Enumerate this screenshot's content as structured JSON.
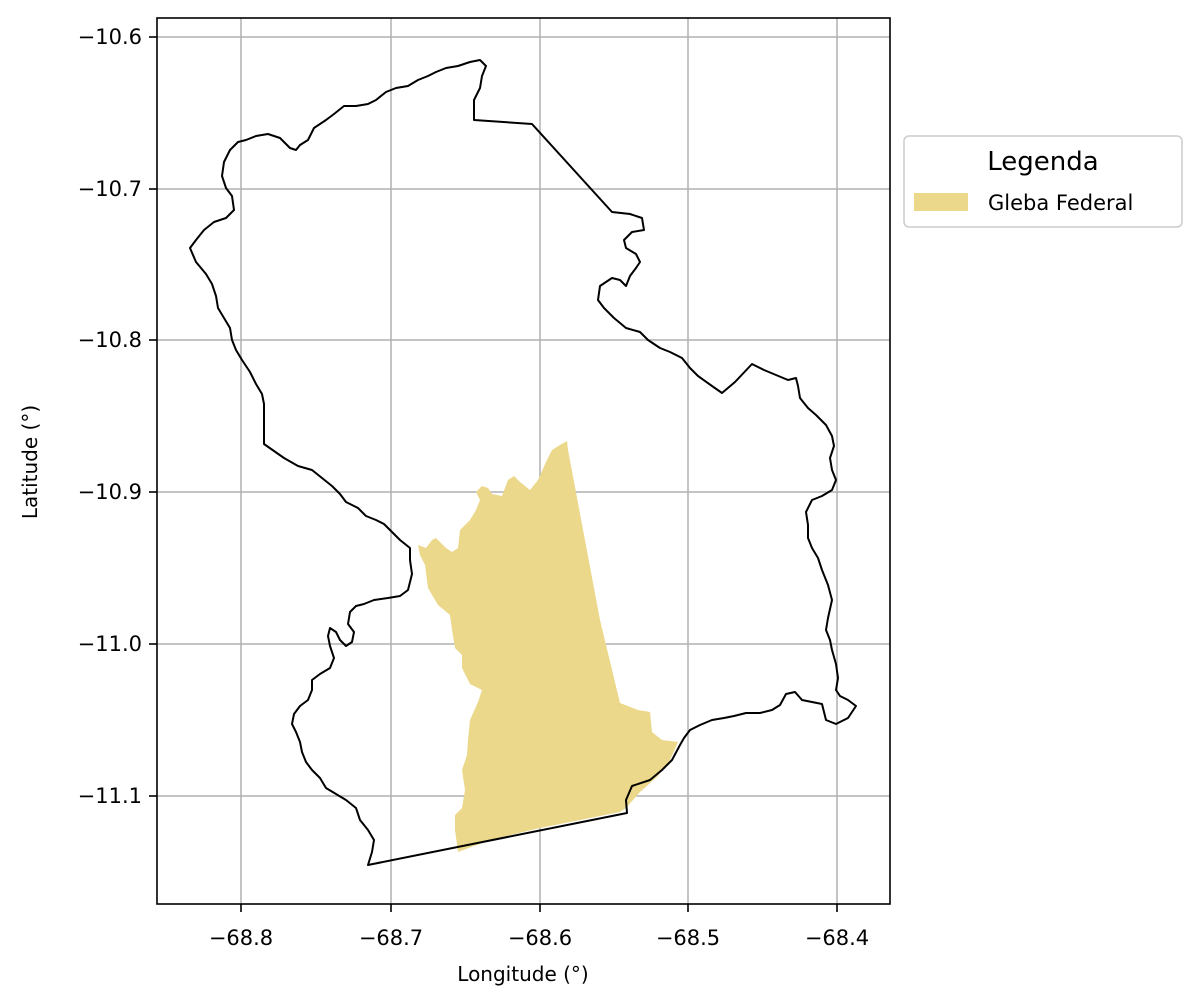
{
  "map": {
    "xlabel": "Longitude (°)",
    "ylabel": "Latitude (°)",
    "x_ticks": [
      "−68.8",
      "−68.7",
      "−68.6",
      "−68.5",
      "−68.4"
    ],
    "y_ticks": [
      "−10.6",
      "−10.7",
      "−10.8",
      "−10.9",
      "−11.0",
      "−11.1"
    ],
    "grid": true,
    "legend": {
      "title": "Legenda",
      "placement": "outside-right-top",
      "items": [
        {
          "label": "Gleba Federal",
          "color": "#ebd88a"
        }
      ]
    },
    "colors": {
      "boundary": "#000000",
      "gleba_fill": "#ebd88a",
      "grid": "#b0b0b0"
    }
  }
}
